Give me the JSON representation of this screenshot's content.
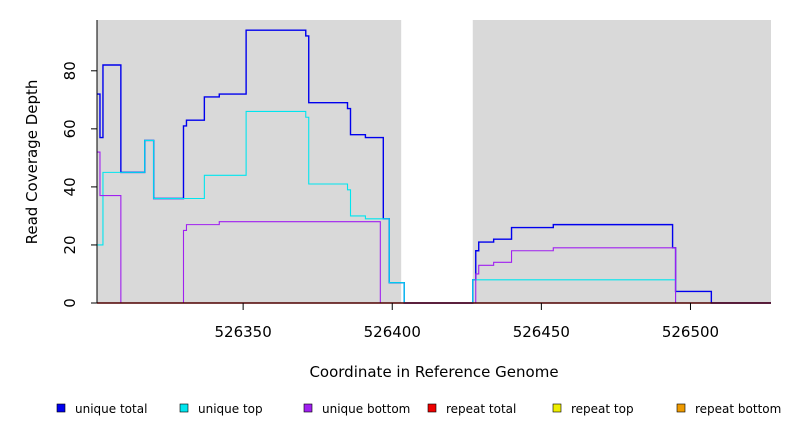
{
  "chart_data": {
    "type": "line",
    "title": "",
    "xlabel": "Coordinate in Reference Genome",
    "ylabel": "Read Coverage Depth",
    "xlim": [
      526301,
      526527
    ],
    "ylim": [
      0,
      97.5
    ],
    "x_ticks": [
      526350,
      526400,
      526450,
      526500
    ],
    "y_ticks": [
      0,
      20,
      40,
      60,
      80
    ],
    "grid": false,
    "background_color": "#d9d9d9",
    "unshaded_regions": [
      [
        526403,
        526427
      ]
    ],
    "legend": {
      "placement": "bottom",
      "entries": [
        {
          "label": "unique total",
          "color": "#0000ee"
        },
        {
          "label": "unique top",
          "color": "#00e5ee"
        },
        {
          "label": "unique bottom",
          "color": "#a020f0"
        },
        {
          "label": "repeat total",
          "color": "#ee0000"
        },
        {
          "label": "repeat top",
          "color": "#eeee00"
        },
        {
          "label": "repeat bottom",
          "color": "#ee9a00"
        }
      ]
    },
    "series": [
      {
        "name": "unique total",
        "color": "#0000ee",
        "step": true,
        "points": [
          [
            526301,
            72
          ],
          [
            526302,
            57
          ],
          [
            526303,
            82
          ],
          [
            526309,
            45
          ],
          [
            526317,
            56
          ],
          [
            526320,
            36
          ],
          [
            526330,
            61
          ],
          [
            526331,
            63
          ],
          [
            526337,
            71
          ],
          [
            526342,
            72
          ],
          [
            526351,
            94
          ],
          [
            526371,
            92
          ],
          [
            526372,
            69
          ],
          [
            526385,
            67
          ],
          [
            526386,
            58
          ],
          [
            526391,
            57
          ],
          [
            526397,
            29
          ],
          [
            526399,
            7
          ],
          [
            526404,
            0
          ],
          [
            526427,
            8
          ],
          [
            526428,
            18
          ],
          [
            526429,
            21
          ],
          [
            526434,
            22
          ],
          [
            526440,
            26
          ],
          [
            526454,
            27
          ],
          [
            526494,
            19
          ],
          [
            526495,
            4
          ],
          [
            526507,
            0
          ],
          [
            526527,
            0
          ]
        ]
      },
      {
        "name": "unique top",
        "color": "#00e5ee",
        "step": true,
        "points": [
          [
            526301,
            20
          ],
          [
            526303,
            45
          ],
          [
            526309,
            45
          ],
          [
            526317,
            56
          ],
          [
            526320,
            36
          ],
          [
            526337,
            44
          ],
          [
            526351,
            66
          ],
          [
            526371,
            64
          ],
          [
            526372,
            41
          ],
          [
            526385,
            39
          ],
          [
            526386,
            30
          ],
          [
            526391,
            29
          ],
          [
            526397,
            29
          ],
          [
            526399,
            7
          ],
          [
            526404,
            0
          ],
          [
            526427,
            8
          ],
          [
            526495,
            0
          ],
          [
            526527,
            0
          ]
        ]
      },
      {
        "name": "unique bottom",
        "color": "#a020f0",
        "step": true,
        "points": [
          [
            526301,
            52
          ],
          [
            526302,
            37
          ],
          [
            526309,
            0
          ],
          [
            526330,
            25
          ],
          [
            526331,
            27
          ],
          [
            526342,
            28
          ],
          [
            526396,
            0
          ],
          [
            526427,
            0
          ],
          [
            526428,
            10
          ],
          [
            526429,
            13
          ],
          [
            526434,
            14
          ],
          [
            526440,
            18
          ],
          [
            526454,
            19
          ],
          [
            526494,
            19
          ],
          [
            526495,
            0
          ],
          [
            526527,
            0
          ]
        ]
      },
      {
        "name": "repeat total",
        "color": "#ee0000",
        "step": true,
        "points": [
          [
            526301,
            0
          ],
          [
            526527,
            0
          ]
        ]
      },
      {
        "name": "repeat top",
        "color": "#eeee00",
        "step": true,
        "points": [
          [
            526301,
            0
          ],
          [
            526527,
            0
          ]
        ]
      },
      {
        "name": "repeat bottom",
        "color": "#ee9a00",
        "step": true,
        "points": [
          [
            526301,
            0
          ],
          [
            526527,
            0
          ]
        ]
      }
    ]
  }
}
